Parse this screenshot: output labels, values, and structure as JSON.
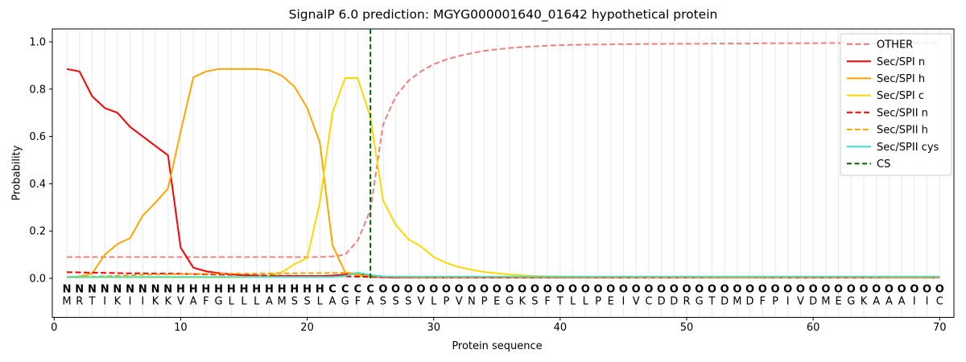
{
  "chart_data": {
    "type": "line",
    "title": "SignalP 6.0 prediction: MGYG000001640_01642 hypothetical protein",
    "xlabel": "Protein sequence",
    "ylabel": "Probability",
    "x_ticks": [
      0,
      10,
      20,
      30,
      40,
      50,
      60,
      70
    ],
    "y_ticks": [
      0.0,
      0.2,
      0.4,
      0.6,
      0.8,
      1.0
    ],
    "ylim": [
      -0.17,
      1.055
    ],
    "xlim": [
      -0.15,
      71.2
    ],
    "grid": "vertical gridline at every residue position 1-70",
    "legend_position": "upper right",
    "sequence": "MRTIKIIKKVAFGLLLAMSSLAGFASSSVLPVNPEGKSFTLLPEIVCDDRGTDMDFPIVDMEGKAAAIIC",
    "region_labels": "NNNNNNNNNHHHHHHHHHHHHCCCCOOOOOOOOOOOOOOOOOOOOOOOOOOOOOOOOOOOOOOOOOOOOO",
    "label_colors": {
      "N": "#ff0000",
      "H": "#ffa500",
      "C": "#ffd700",
      "O": "#8c8c8c"
    },
    "sequence_color": "#262626",
    "grid_color": "#e8e8e8",
    "series": [
      {
        "name": "OTHER",
        "color": "#f08080",
        "dash": "7,3.5",
        "values": [
          0.09,
          0.09,
          0.09,
          0.09,
          0.09,
          0.09,
          0.09,
          0.09,
          0.09,
          0.09,
          0.09,
          0.09,
          0.09,
          0.09,
          0.09,
          0.09,
          0.09,
          0.09,
          0.09,
          0.09,
          0.09,
          0.093,
          0.1,
          0.16,
          0.29,
          0.65,
          0.77,
          0.835,
          0.875,
          0.905,
          0.925,
          0.94,
          0.952,
          0.962,
          0.968,
          0.974,
          0.978,
          0.981,
          0.984,
          0.986,
          0.987,
          0.988,
          0.989,
          0.989,
          0.99,
          0.99,
          0.991,
          0.991,
          0.992,
          0.992,
          0.992,
          0.993,
          0.993,
          0.993,
          0.993,
          0.994,
          0.994,
          0.994,
          0.994,
          0.994,
          0.995,
          0.995,
          0.995,
          0.995,
          0.995,
          0.995,
          0.995,
          0.995,
          0.995,
          0.995
        ]
      },
      {
        "name": "Sec/SPI n",
        "color": "#ff0000",
        "dash": "",
        "values": [
          0.885,
          0.875,
          0.77,
          0.72,
          0.7,
          0.64,
          0.6,
          0.56,
          0.52,
          0.13,
          0.045,
          0.03,
          0.022,
          0.017,
          0.013,
          0.011,
          0.01,
          0.01,
          0.01,
          0.01,
          0.01,
          0.012,
          0.016,
          0.022,
          0.008,
          0.004,
          0.003,
          0.003,
          0.003,
          0.003,
          0.003,
          0.003,
          0.003,
          0.003,
          0.003,
          0.003,
          0.003,
          0.003,
          0.003,
          0.003,
          0.003,
          0.003,
          0.003,
          0.003,
          0.003,
          0.003,
          0.003,
          0.003,
          0.003,
          0.003,
          0.003,
          0.003,
          0.003,
          0.003,
          0.003,
          0.003,
          0.003,
          0.003,
          0.003,
          0.003,
          0.003,
          0.003,
          0.003,
          0.003,
          0.003,
          0.003,
          0.003,
          0.003,
          0.003,
          0.003
        ]
      },
      {
        "name": "Sec/SPI h",
        "color": "#ffa500",
        "dash": "",
        "values": [
          0.005,
          0.008,
          0.02,
          0.1,
          0.145,
          0.17,
          0.265,
          0.32,
          0.38,
          0.62,
          0.85,
          0.875,
          0.885,
          0.885,
          0.885,
          0.885,
          0.88,
          0.857,
          0.81,
          0.72,
          0.575,
          0.14,
          0.026,
          0.012,
          0.008,
          0.006,
          0.005,
          0.005,
          0.005,
          0.005,
          0.005,
          0.005,
          0.005,
          0.005,
          0.005,
          0.005,
          0.005,
          0.005,
          0.005,
          0.005,
          0.005,
          0.005,
          0.005,
          0.005,
          0.005,
          0.005,
          0.005,
          0.005,
          0.005,
          0.005,
          0.005,
          0.005,
          0.005,
          0.005,
          0.005,
          0.005,
          0.005,
          0.005,
          0.005,
          0.005,
          0.005,
          0.005,
          0.005,
          0.005,
          0.005,
          0.005,
          0.005,
          0.005,
          0.005,
          0.005
        ]
      },
      {
        "name": "Sec/SPI c",
        "color": "#ffd700",
        "dash": "",
        "values": [
          0.004,
          0.004,
          0.004,
          0.004,
          0.004,
          0.004,
          0.004,
          0.004,
          0.004,
          0.004,
          0.004,
          0.004,
          0.004,
          0.004,
          0.005,
          0.007,
          0.013,
          0.026,
          0.06,
          0.086,
          0.32,
          0.7,
          0.847,
          0.847,
          0.68,
          0.33,
          0.227,
          0.165,
          0.135,
          0.09,
          0.065,
          0.048,
          0.036,
          0.027,
          0.021,
          0.016,
          0.013,
          0.01,
          0.009,
          0.008,
          0.007,
          0.006,
          0.005,
          0.005,
          0.004,
          0.004,
          0.004,
          0.004,
          0.004,
          0.004,
          0.004,
          0.004,
          0.004,
          0.004,
          0.004,
          0.004,
          0.004,
          0.004,
          0.004,
          0.004,
          0.004,
          0.004,
          0.004,
          0.004,
          0.004,
          0.004,
          0.004,
          0.004,
          0.004,
          0.004
        ]
      },
      {
        "name": "Sec/SPII n",
        "color": "#ff0000",
        "dash": "7,3.5",
        "values": [
          0.026,
          0.025,
          0.024,
          0.023,
          0.022,
          0.021,
          0.021,
          0.02,
          0.02,
          0.019,
          0.018,
          0.017,
          0.016,
          0.015,
          0.014,
          0.013,
          0.012,
          0.011,
          0.011,
          0.01,
          0.01,
          0.009,
          0.008,
          0.007,
          0.006,
          0.005,
          0.005,
          0.004,
          0.004,
          0.004,
          0.004,
          0.004,
          0.004,
          0.004,
          0.004,
          0.004,
          0.004,
          0.004,
          0.004,
          0.004,
          0.004,
          0.004,
          0.004,
          0.004,
          0.004,
          0.004,
          0.004,
          0.004,
          0.004,
          0.004,
          0.004,
          0.004,
          0.004,
          0.004,
          0.004,
          0.004,
          0.004,
          0.004,
          0.004,
          0.004,
          0.004,
          0.004,
          0.004,
          0.004,
          0.004,
          0.004,
          0.004,
          0.004,
          0.004,
          0.004
        ]
      },
      {
        "name": "Sec/SPII h",
        "color": "#ffa500",
        "dash": "6.5,3.5",
        "values": [
          0.004,
          0.005,
          0.007,
          0.009,
          0.011,
          0.013,
          0.015,
          0.016,
          0.017,
          0.018,
          0.019,
          0.019,
          0.02,
          0.02,
          0.02,
          0.02,
          0.021,
          0.021,
          0.021,
          0.022,
          0.022,
          0.023,
          0.024,
          0.019,
          0.012,
          0.008,
          0.006,
          0.005,
          0.004,
          0.004,
          0.004,
          0.004,
          0.004,
          0.004,
          0.004,
          0.004,
          0.004,
          0.004,
          0.004,
          0.004,
          0.004,
          0.004,
          0.004,
          0.004,
          0.004,
          0.004,
          0.004,
          0.004,
          0.004,
          0.004,
          0.004,
          0.004,
          0.004,
          0.004,
          0.004,
          0.004,
          0.004,
          0.004,
          0.004,
          0.004,
          0.004,
          0.004,
          0.004,
          0.004,
          0.004,
          0.004,
          0.004,
          0.004,
          0.004,
          0.004
        ]
      },
      {
        "name": "Sec/SPII cys",
        "color": "#40e0d0",
        "dash": "",
        "values": [
          0.006,
          0.006,
          0.006,
          0.006,
          0.006,
          0.006,
          0.006,
          0.006,
          0.006,
          0.006,
          0.006,
          0.006,
          0.006,
          0.006,
          0.006,
          0.006,
          0.006,
          0.006,
          0.006,
          0.006,
          0.006,
          0.006,
          0.01,
          0.024,
          0.014,
          0.008,
          0.007,
          0.007,
          0.007,
          0.007,
          0.007,
          0.007,
          0.007,
          0.007,
          0.007,
          0.007,
          0.007,
          0.007,
          0.007,
          0.007,
          0.007,
          0.007,
          0.007,
          0.007,
          0.007,
          0.007,
          0.007,
          0.007,
          0.007,
          0.007,
          0.007,
          0.007,
          0.007,
          0.007,
          0.007,
          0.007,
          0.007,
          0.007,
          0.007,
          0.007,
          0.007,
          0.007,
          0.007,
          0.007,
          0.007,
          0.007,
          0.007,
          0.007,
          0.007,
          0.007
        ]
      }
    ],
    "cs": {
      "label": "CS",
      "color": "#006400",
      "dash": "6,3.5",
      "position": 25
    }
  }
}
